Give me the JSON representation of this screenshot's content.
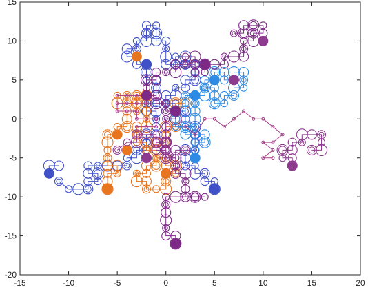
{
  "chart_data": {
    "type": "scatter",
    "xlim": [
      -15,
      20
    ],
    "ylim": [
      -20,
      15
    ],
    "xticks": [
      -15,
      -10,
      -5,
      0,
      5,
      10,
      15,
      20
    ],
    "yticks": [
      -20,
      -15,
      -10,
      -5,
      0,
      5,
      10,
      15
    ],
    "xtick_labels": [
      "-15",
      "-10",
      "-5",
      "0",
      "5",
      "10",
      "15",
      "20"
    ],
    "ytick_labels": [
      "-20",
      "-15",
      "-10",
      "-5",
      "0",
      "5",
      "10",
      "15"
    ],
    "grid": false,
    "legend": "none",
    "series": [
      {
        "color": "#4051c8",
        "path": [
          [
            -12,
            -7
          ],
          [
            -12,
            -6
          ],
          [
            -11,
            -6
          ],
          [
            -11,
            -8
          ],
          [
            -10,
            -9
          ],
          [
            -9,
            -9
          ],
          [
            -8,
            -9
          ],
          [
            -8,
            -8
          ],
          [
            -7,
            -8
          ],
          [
            -7,
            -7
          ],
          [
            -8,
            -7
          ],
          [
            -8,
            -6
          ],
          [
            -7,
            -6
          ],
          [
            -6,
            -6
          ],
          [
            -5,
            -6
          ],
          [
            -4,
            -6
          ],
          [
            -4,
            -5
          ],
          [
            -3,
            -5
          ],
          [
            -3,
            -4
          ],
          [
            -2,
            -4
          ],
          [
            -2,
            -3
          ],
          [
            -2,
            -2
          ],
          [
            -1,
            -2
          ],
          [
            -1,
            -1
          ],
          [
            -1,
            0
          ],
          [
            -1,
            1
          ],
          [
            -2,
            1
          ],
          [
            -2,
            2
          ],
          [
            -1,
            2
          ],
          [
            -1,
            3
          ],
          [
            -1,
            4
          ],
          [
            -1,
            5
          ],
          [
            -2,
            5
          ],
          [
            -2,
            6
          ],
          [
            -2,
            7
          ],
          [
            -3,
            7
          ],
          [
            -3,
            8
          ],
          [
            -4,
            8
          ],
          [
            -4,
            9
          ],
          [
            -3,
            9
          ],
          [
            -3,
            10
          ],
          [
            -2,
            10
          ],
          [
            -2,
            11
          ],
          [
            -2,
            12
          ],
          [
            -1,
            12
          ],
          [
            -1,
            11
          ],
          [
            -1,
            10
          ],
          [
            0,
            10
          ],
          [
            0,
            9
          ],
          [
            0,
            8
          ],
          [
            0,
            7
          ],
          [
            1,
            7
          ],
          [
            1,
            8
          ],
          [
            2,
            8
          ],
          [
            2,
            7
          ],
          [
            3,
            7
          ],
          [
            3,
            6
          ],
          [
            3,
            5
          ],
          [
            2,
            5
          ],
          [
            2,
            4
          ],
          [
            1,
            4
          ],
          [
            1,
            3
          ],
          [
            0,
            3
          ],
          [
            0,
            2
          ],
          [
            1,
            2
          ],
          [
            1,
            1
          ],
          [
            2,
            1
          ],
          [
            2,
            0
          ],
          [
            2,
            -1
          ],
          [
            3,
            -1
          ],
          [
            3,
            -2
          ],
          [
            3,
            -3
          ],
          [
            3,
            -4
          ],
          [
            2,
            -4
          ],
          [
            2,
            -5
          ],
          [
            2,
            -6
          ],
          [
            3,
            -6
          ],
          [
            3,
            -7
          ],
          [
            4,
            -7
          ],
          [
            4,
            -8
          ],
          [
            5,
            -8
          ],
          [
            5,
            -9
          ]
        ],
        "markers": [
          [
            -12,
            -7
          ],
          [
            -2,
            7
          ],
          [
            5,
            -9
          ]
        ]
      },
      {
        "color": "#e7741f",
        "path": [
          [
            -6,
            -9
          ],
          [
            -6,
            -8
          ],
          [
            -6,
            -7
          ],
          [
            -5,
            -7
          ],
          [
            -5,
            -6
          ],
          [
            -6,
            -6
          ],
          [
            -6,
            -5
          ],
          [
            -6,
            -4
          ],
          [
            -6,
            -3
          ],
          [
            -6,
            -2
          ],
          [
            -5,
            -2
          ],
          [
            -5,
            -1
          ],
          [
            -4,
            -1
          ],
          [
            -4,
            0
          ],
          [
            -4,
            1
          ],
          [
            -3,
            1
          ],
          [
            -3,
            2
          ],
          [
            -3,
            3
          ],
          [
            -4,
            3
          ],
          [
            -5,
            3
          ],
          [
            -5,
            2
          ],
          [
            -4,
            2
          ],
          [
            -3,
            2
          ],
          [
            -3,
            3
          ],
          [
            -2,
            3
          ],
          [
            -2,
            2
          ],
          [
            -2,
            1
          ],
          [
            -2,
            0
          ],
          [
            -2,
            -1
          ],
          [
            -3,
            -1
          ],
          [
            -3,
            -2
          ],
          [
            -3,
            -3
          ],
          [
            -2,
            -3
          ],
          [
            -2,
            -4
          ],
          [
            -1,
            -4
          ],
          [
            -1,
            -5
          ],
          [
            -1,
            -6
          ],
          [
            -2,
            -6
          ],
          [
            -2,
            -7
          ],
          [
            -3,
            -7
          ],
          [
            -3,
            -8
          ],
          [
            -2,
            -8
          ],
          [
            -2,
            -9
          ],
          [
            -1,
            -9
          ],
          [
            0,
            -9
          ],
          [
            0,
            -8
          ],
          [
            0,
            -7
          ],
          [
            1,
            -7
          ],
          [
            1,
            -6
          ],
          [
            0,
            -6
          ],
          [
            0,
            -5
          ],
          [
            -1,
            -5
          ],
          [
            -1,
            -4
          ],
          [
            -1,
            -3
          ],
          [
            0,
            -3
          ],
          [
            0,
            -2
          ],
          [
            0,
            -1
          ],
          [
            1,
            -1
          ],
          [
            1,
            0
          ],
          [
            1,
            1
          ],
          [
            1,
            2
          ],
          [
            2,
            2
          ],
          [
            2,
            3
          ],
          [
            3,
            3
          ]
        ],
        "markers": [
          [
            -6,
            -9
          ],
          [
            -5,
            -2
          ],
          [
            -4,
            -4
          ],
          [
            -3,
            8
          ],
          [
            0,
            -7
          ],
          [
            3,
            3
          ]
        ]
      },
      {
        "color": "#2d8be6",
        "path": [
          [
            3,
            -5
          ],
          [
            3,
            -4
          ],
          [
            3,
            -3
          ],
          [
            4,
            -3
          ],
          [
            4,
            -2
          ],
          [
            3,
            -2
          ],
          [
            3,
            -1
          ],
          [
            3,
            0
          ],
          [
            3,
            1
          ],
          [
            3,
            2
          ],
          [
            3,
            3
          ],
          [
            4,
            3
          ],
          [
            4,
            4
          ],
          [
            4,
            5
          ],
          [
            5,
            5
          ],
          [
            5,
            6
          ],
          [
            6,
            6
          ],
          [
            6,
            5
          ],
          [
            7,
            5
          ],
          [
            7,
            6
          ],
          [
            8,
            6
          ],
          [
            8,
            5
          ],
          [
            8,
            4
          ],
          [
            7,
            4
          ],
          [
            7,
            3
          ],
          [
            6,
            3
          ],
          [
            6,
            2
          ],
          [
            5,
            2
          ],
          [
            5,
            3
          ],
          [
            5,
            4
          ],
          [
            4,
            4
          ],
          [
            4,
            3
          ],
          [
            3,
            3
          ],
          [
            2,
            3
          ],
          [
            2,
            2
          ],
          [
            2,
            1
          ],
          [
            1,
            1
          ],
          [
            1,
            0
          ],
          [
            1,
            -1
          ],
          [
            2,
            -1
          ],
          [
            2,
            -2
          ],
          [
            3,
            -2
          ]
        ],
        "markers": [
          [
            3,
            -5
          ],
          [
            5,
            5
          ],
          [
            3,
            3
          ]
        ]
      },
      {
        "color": "#a83c8a",
        "path": [
          [
            2,
            -1
          ],
          [
            3,
            -2
          ],
          [
            4,
            0
          ],
          [
            5,
            0
          ],
          [
            6,
            -1
          ],
          [
            7,
            0
          ],
          [
            8,
            1
          ],
          [
            9,
            0
          ],
          [
            10,
            0
          ],
          [
            11,
            -1
          ],
          [
            12,
            -2
          ],
          [
            11,
            -3
          ],
          [
            10,
            -3
          ],
          [
            11,
            -4
          ],
          [
            10,
            -5
          ],
          [
            11,
            -5
          ]
        ],
        "markers": [],
        "small": true
      },
      {
        "color": "#a83c8a",
        "path": [
          [
            -5,
            3
          ],
          [
            -4,
            3
          ],
          [
            -3,
            3
          ],
          [
            -2,
            3
          ],
          [
            -2,
            2
          ],
          [
            -3,
            2
          ],
          [
            -4,
            2
          ],
          [
            -5,
            2
          ],
          [
            -5,
            1
          ],
          [
            -4,
            1
          ],
          [
            -3,
            1
          ],
          [
            -3,
            0
          ],
          [
            -2,
            0
          ],
          [
            -1,
            0
          ],
          [
            -1,
            -1
          ],
          [
            -2,
            -1
          ],
          [
            -3,
            -1
          ]
        ],
        "markers": [],
        "small": true
      },
      {
        "color": "#7d2a86",
        "path": [
          [
            1,
            -16
          ],
          [
            1,
            -15
          ],
          [
            0,
            -15
          ],
          [
            0,
            -14
          ],
          [
            0,
            -13
          ],
          [
            0,
            -12
          ],
          [
            0,
            -11
          ],
          [
            0,
            -10
          ],
          [
            1,
            -10
          ],
          [
            2,
            -10
          ],
          [
            3,
            -10
          ],
          [
            4,
            -10
          ],
          [
            3,
            -10
          ],
          [
            2,
            -10
          ],
          [
            2,
            -9
          ],
          [
            2,
            -8
          ],
          [
            2,
            -7
          ],
          [
            1,
            -7
          ],
          [
            1,
            -6
          ],
          [
            1,
            -5
          ],
          [
            0,
            -5
          ],
          [
            0,
            -4
          ],
          [
            -1,
            -4
          ],
          [
            -1,
            -3
          ],
          [
            0,
            -3
          ],
          [
            0,
            -2
          ],
          [
            0,
            -1
          ],
          [
            0,
            0
          ],
          [
            1,
            0
          ],
          [
            1,
            1
          ],
          [
            0,
            1
          ],
          [
            0,
            2
          ],
          [
            -1,
            2
          ],
          [
            -1,
            3
          ],
          [
            -2,
            3
          ],
          [
            -2,
            4
          ],
          [
            -2,
            5
          ],
          [
            -1,
            5
          ],
          [
            -1,
            6
          ],
          [
            0,
            6
          ],
          [
            1,
            6
          ],
          [
            1,
            7
          ],
          [
            2,
            7
          ],
          [
            2,
            8
          ],
          [
            3,
            8
          ],
          [
            3,
            7
          ],
          [
            3,
            6
          ],
          [
            4,
            6
          ],
          [
            4,
            7
          ],
          [
            5,
            7
          ],
          [
            6,
            7
          ],
          [
            6,
            8
          ],
          [
            7,
            8
          ],
          [
            8,
            8
          ],
          [
            8,
            9
          ],
          [
            8,
            10
          ],
          [
            9,
            10
          ],
          [
            9,
            11
          ],
          [
            10,
            11
          ],
          [
            10,
            12
          ],
          [
            9,
            12
          ],
          [
            8,
            12
          ],
          [
            8,
            11
          ],
          [
            7,
            11
          ],
          [
            8,
            11
          ]
        ],
        "markers": [
          [
            1,
            -16
          ],
          [
            1,
            1
          ],
          [
            -2,
            3
          ],
          [
            4,
            7
          ]
        ]
      },
      {
        "color": "#8e3a8f",
        "path": [
          [
            13,
            -6
          ],
          [
            13,
            -5
          ],
          [
            12,
            -5
          ],
          [
            12,
            -4
          ],
          [
            13,
            -4
          ],
          [
            13,
            -3
          ],
          [
            14,
            -3
          ],
          [
            14,
            -2
          ],
          [
            15,
            -2
          ],
          [
            16,
            -2
          ],
          [
            16,
            -3
          ],
          [
            16,
            -4
          ],
          [
            15,
            -4
          ]
        ],
        "markers": [
          [
            13,
            -6
          ]
        ]
      },
      {
        "color": "#8e3a8f",
        "path": [
          [
            -5,
            -4
          ],
          [
            -4,
            -3
          ],
          [
            -3,
            -3
          ],
          [
            -3,
            -2
          ],
          [
            -2,
            -2
          ],
          [
            -1,
            -2
          ],
          [
            -1,
            -3
          ],
          [
            0,
            -3
          ],
          [
            0,
            -4
          ],
          [
            0,
            -5
          ],
          [
            1,
            -5
          ],
          [
            1,
            -4
          ],
          [
            2,
            -4
          ]
        ],
        "markers": [
          [
            -2,
            -5
          ],
          [
            7,
            5
          ],
          [
            10,
            10
          ]
        ]
      }
    ]
  }
}
